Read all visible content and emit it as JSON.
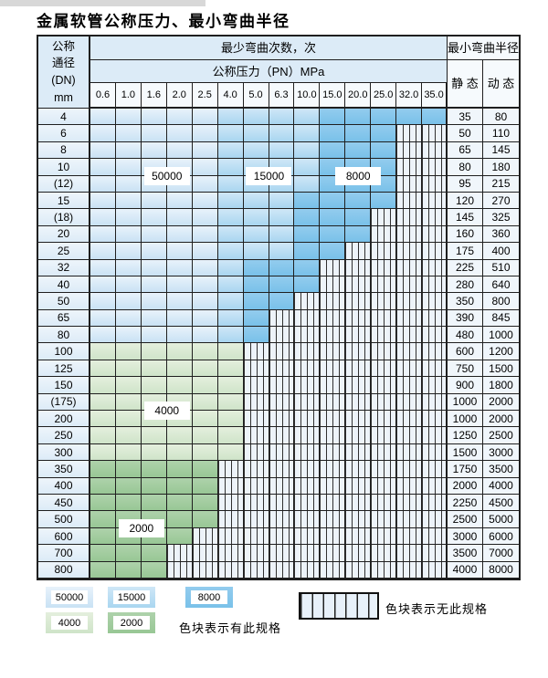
{
  "page": {
    "title": "金属软管公称压力、最小弯曲半径"
  },
  "colors": {
    "blue_50000_top": "#e8f2fb",
    "blue_50000_bottom": "#c9e2f4",
    "blue_15000_top": "#cfe7f7",
    "blue_15000_bottom": "#a9d6f0",
    "blue_8000_top": "#93ccee",
    "blue_8000_bottom": "#79c1e9",
    "green_4000_top": "#e4efdd",
    "green_4000_bottom": "#cfe4c9",
    "green_2000_top": "#aed2ab",
    "green_2000_bottom": "#98c795",
    "hatch_bg": "#edf3f9",
    "header_bg": "#dcebf7"
  },
  "table": {
    "header": {
      "col_dn": [
        "公称",
        "通径",
        "(DN)",
        "mm"
      ],
      "bend_cycles": "最少弯曲次数，次",
      "pressure_group": "公称压力（PN）MPa",
      "pressures": [
        "0.6",
        "1.0",
        "1.6",
        "2.0",
        "2.5",
        "4.0",
        "5.0",
        "6.3",
        "10.0",
        "15.0",
        "20.0",
        "25.0",
        "32.0",
        "35.0"
      ],
      "radius_group": "最小弯曲半径",
      "static_label": "静 态",
      "dynamic_label": "动 态"
    },
    "rows": [
      {
        "dn": "4",
        "static": "35",
        "dynamic": "80",
        "band": "blue",
        "mid": 5,
        "dark": 9,
        "end": 13
      },
      {
        "dn": "6",
        "static": "50",
        "dynamic": "110",
        "band": "blue",
        "mid": 5,
        "dark": 9,
        "end": 11
      },
      {
        "dn": "8",
        "static": "65",
        "dynamic": "145",
        "band": "blue",
        "mid": 5,
        "dark": 9,
        "end": 11
      },
      {
        "dn": "10",
        "static": "80",
        "dynamic": "180",
        "band": "blue",
        "mid": 5,
        "dark": 9,
        "end": 11
      },
      {
        "dn": "(12)",
        "static": "95",
        "dynamic": "215",
        "band": "blue",
        "mid": 5,
        "dark": 9,
        "end": 11
      },
      {
        "dn": "15",
        "static": "120",
        "dynamic": "270",
        "band": "blue",
        "mid": 5,
        "dark": 8,
        "end": 11
      },
      {
        "dn": "(18)",
        "static": "145",
        "dynamic": "325",
        "band": "blue",
        "mid": 5,
        "dark": 8,
        "end": 10
      },
      {
        "dn": "20",
        "static": "160",
        "dynamic": "360",
        "band": "blue",
        "mid": 5,
        "dark": 8,
        "end": 10
      },
      {
        "dn": "25",
        "static": "175",
        "dynamic": "400",
        "band": "blue",
        "mid": 5,
        "dark": 8,
        "end": 9
      },
      {
        "dn": "32",
        "static": "225",
        "dynamic": "510",
        "band": "blue",
        "mid": 5,
        "dark": 6,
        "end": 8
      },
      {
        "dn": "40",
        "static": "280",
        "dynamic": "640",
        "band": "blue",
        "mid": 5,
        "dark": 6,
        "end": 8
      },
      {
        "dn": "50",
        "static": "350",
        "dynamic": "800",
        "band": "blue",
        "mid": 5,
        "dark": 6,
        "end": 7
      },
      {
        "dn": "65",
        "static": "390",
        "dynamic": "845",
        "band": "blue",
        "mid": 5,
        "dark": 6,
        "end": 6
      },
      {
        "dn": "80",
        "static": "480",
        "dynamic": "1000",
        "band": "blue",
        "mid": 5,
        "dark": 6,
        "end": 6
      },
      {
        "dn": "100",
        "static": "600",
        "dynamic": "1200",
        "band": "green4",
        "end": 5
      },
      {
        "dn": "125",
        "static": "750",
        "dynamic": "1500",
        "band": "green4",
        "end": 5
      },
      {
        "dn": "150",
        "static": "900",
        "dynamic": "1800",
        "band": "green4",
        "end": 5
      },
      {
        "dn": "(175)",
        "static": "1000",
        "dynamic": "2000",
        "band": "green4",
        "end": 5
      },
      {
        "dn": "200",
        "static": "1000",
        "dynamic": "2000",
        "band": "green4",
        "end": 5
      },
      {
        "dn": "250",
        "static": "1250",
        "dynamic": "2500",
        "band": "green4",
        "end": 5
      },
      {
        "dn": "300",
        "static": "1500",
        "dynamic": "3000",
        "band": "green4",
        "end": 5
      },
      {
        "dn": "350",
        "static": "1750",
        "dynamic": "3500",
        "band": "green2",
        "end": 4
      },
      {
        "dn": "400",
        "static": "2000",
        "dynamic": "4000",
        "band": "green2",
        "end": 4
      },
      {
        "dn": "450",
        "static": "2250",
        "dynamic": "4500",
        "band": "green2",
        "end": 4
      },
      {
        "dn": "500",
        "static": "2500",
        "dynamic": "5000",
        "band": "green2",
        "end": 4
      },
      {
        "dn": "600",
        "static": "3000",
        "dynamic": "6000",
        "band": "green2",
        "end": 3
      },
      {
        "dn": "700",
        "static": "3500",
        "dynamic": "7000",
        "band": "green2",
        "end": 2
      },
      {
        "dn": "800",
        "static": "4000",
        "dynamic": "8000",
        "band": "green2",
        "end": 2
      }
    ],
    "zone_labels": [
      {
        "label": "50000",
        "dn_span": [
          "10",
          "(12)"
        ],
        "p_span": [
          "1.6",
          "2.0"
        ]
      },
      {
        "label": "15000",
        "dn_span": [
          "10",
          "(12)"
        ],
        "p_span": [
          "5.0",
          "6.3"
        ]
      },
      {
        "label": "8000",
        "dn_span": [
          "10",
          "(12)"
        ],
        "p_span": [
          "15.0",
          "25.0"
        ]
      },
      {
        "label": "4000",
        "dn_span": [
          "(175)",
          "200"
        ],
        "p_span": [
          "1.6",
          "2.0"
        ]
      },
      {
        "label": "2000",
        "dn_span": [
          "500",
          "600"
        ],
        "p_span": [
          "1.0",
          "1.6"
        ]
      }
    ]
  },
  "legend": {
    "swatches": [
      {
        "label": "50000",
        "zone": "z50"
      },
      {
        "label": "15000",
        "zone": "z15"
      },
      {
        "label": "8000",
        "zone": "z8"
      },
      {
        "label": "4000",
        "zone": "z4"
      },
      {
        "label": "2000",
        "zone": "z2"
      }
    ],
    "has_spec_note": "色块表示有此规格",
    "no_spec_note": "色块表示无此规格"
  }
}
